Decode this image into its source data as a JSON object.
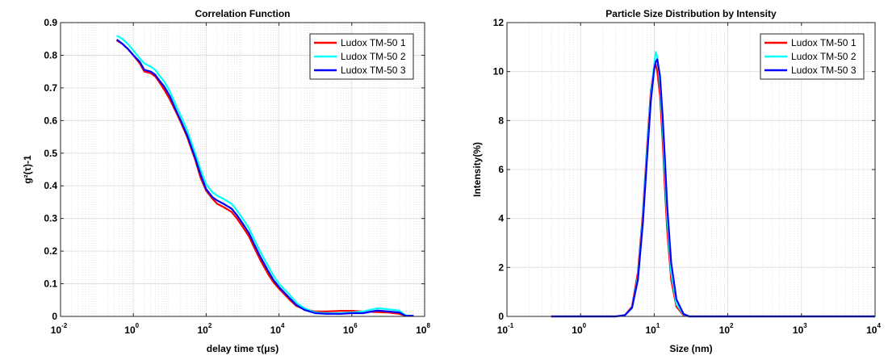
{
  "chart_data": [
    {
      "type": "line",
      "title": "Correlation Function",
      "xlabel": "delay time  τ(μs)",
      "ylabel": "g²(τ)-1",
      "xscale": "log",
      "xlim": [
        0.01,
        100000000
      ],
      "ylim": [
        0,
        0.9
      ],
      "xticks": [
        {
          "base": "10",
          "exp": "-2"
        },
        {
          "base": "10",
          "exp": "0"
        },
        {
          "base": "10",
          "exp": "2"
        },
        {
          "base": "10",
          "exp": "4"
        },
        {
          "base": "10",
          "exp": "6"
        },
        {
          "base": "10",
          "exp": "8"
        }
      ],
      "yticks": [
        "0",
        "0.1",
        "0.2",
        "0.3",
        "0.4",
        "0.5",
        "0.6",
        "0.7",
        "0.8",
        "0.9"
      ],
      "grid": true,
      "legend_position": "top-right",
      "series": [
        {
          "name": "Ludox TM-50 1",
          "color": "#ff0000",
          "x": [
            0.35,
            0.5,
            0.7,
            1,
            1.5,
            2,
            3,
            4,
            5,
            7,
            10,
            15,
            20,
            30,
            50,
            70,
            100,
            150,
            200,
            300,
            500,
            700,
            1000,
            1500,
            2000,
            3000,
            5000,
            7000,
            10000,
            20000,
            30000,
            50000,
            100000,
            200000,
            500000,
            1000000,
            2000000,
            5000000,
            10000000,
            20000000,
            30000000,
            50000000
          ],
          "y": [
            0.845,
            0.835,
            0.82,
            0.8,
            0.775,
            0.75,
            0.745,
            0.735,
            0.72,
            0.695,
            0.665,
            0.625,
            0.595,
            0.55,
            0.48,
            0.425,
            0.385,
            0.36,
            0.345,
            0.335,
            0.32,
            0.3,
            0.275,
            0.245,
            0.215,
            0.175,
            0.13,
            0.105,
            0.085,
            0.05,
            0.032,
            0.022,
            0.015,
            0.015,
            0.017,
            0.017,
            0.015,
            0.013,
            0.012,
            0.008,
            0.002,
            0.002
          ]
        },
        {
          "name": "Ludox TM-50 2",
          "color": "#00ffff",
          "x": [
            0.35,
            0.5,
            0.7,
            1,
            1.5,
            2,
            3,
            4,
            5,
            7,
            10,
            15,
            20,
            30,
            50,
            70,
            100,
            150,
            200,
            300,
            500,
            700,
            1000,
            1500,
            2000,
            3000,
            5000,
            7000,
            10000,
            20000,
            30000,
            50000,
            100000,
            200000,
            500000,
            1000000,
            2000000,
            5000000,
            10000000,
            20000000,
            30000000,
            50000000
          ],
          "y": [
            0.86,
            0.85,
            0.835,
            0.815,
            0.79,
            0.775,
            0.765,
            0.755,
            0.74,
            0.72,
            0.69,
            0.645,
            0.615,
            0.57,
            0.5,
            0.45,
            0.405,
            0.38,
            0.37,
            0.36,
            0.345,
            0.325,
            0.3,
            0.27,
            0.24,
            0.2,
            0.155,
            0.125,
            0.1,
            0.065,
            0.042,
            0.025,
            0.012,
            0.01,
            0.01,
            0.012,
            0.015,
            0.025,
            0.022,
            0.018,
            0.003,
            0.002
          ]
        },
        {
          "name": "Ludox TM-50 3",
          "color": "#0000ff",
          "x": [
            0.35,
            0.5,
            0.7,
            1,
            1.5,
            2,
            3,
            4,
            5,
            7,
            10,
            15,
            20,
            30,
            50,
            70,
            100,
            150,
            200,
            300,
            500,
            700,
            1000,
            1500,
            2000,
            3000,
            5000,
            7000,
            10000,
            20000,
            30000,
            50000,
            100000,
            200000,
            500000,
            1000000,
            2000000,
            5000000,
            10000000,
            20000000,
            30000000,
            50000000
          ],
          "y": [
            0.848,
            0.835,
            0.82,
            0.8,
            0.78,
            0.755,
            0.75,
            0.74,
            0.725,
            0.705,
            0.675,
            0.63,
            0.6,
            0.555,
            0.485,
            0.435,
            0.39,
            0.365,
            0.355,
            0.345,
            0.33,
            0.31,
            0.285,
            0.255,
            0.225,
            0.185,
            0.14,
            0.112,
            0.09,
            0.055,
            0.035,
            0.02,
            0.01,
            0.008,
            0.008,
            0.01,
            0.01,
            0.018,
            0.015,
            0.012,
            0.002,
            0.002
          ]
        }
      ]
    },
    {
      "type": "line",
      "title": "Particle Size Distribution by Intensity",
      "xlabel": "Size  (nm)",
      "ylabel": "Intensity(%)",
      "xscale": "log",
      "xlim": [
        0.1,
        10000
      ],
      "ylim": [
        0,
        12
      ],
      "xticks": [
        {
          "base": "10",
          "exp": "-1"
        },
        {
          "base": "10",
          "exp": "0"
        },
        {
          "base": "10",
          "exp": "1"
        },
        {
          "base": "10",
          "exp": "2"
        },
        {
          "base": "10",
          "exp": "3"
        },
        {
          "base": "10",
          "exp": "4"
        }
      ],
      "yticks": [
        "0",
        "2",
        "4",
        "6",
        "8",
        "10",
        "12"
      ],
      "grid": true,
      "legend_position": "top-right",
      "series": [
        {
          "name": "Ludox TM-50 1",
          "color": "#ff0000",
          "x": [
            0.4,
            1,
            2,
            3,
            4,
            5,
            6,
            7,
            8,
            9,
            10,
            10.5,
            11,
            12,
            13,
            14,
            15,
            17,
            20,
            25,
            30,
            50,
            100,
            1000,
            10000
          ],
          "y": [
            0,
            0,
            0,
            0,
            0.05,
            0.4,
            1.8,
            4.2,
            7,
            9.2,
            10.2,
            10.3,
            10.0,
            9.0,
            7.2,
            5.2,
            3.5,
            1.5,
            0.4,
            0.05,
            0,
            0,
            0,
            0,
            0
          ]
        },
        {
          "name": "Ludox TM-50 2",
          "color": "#00ffff",
          "x": [
            0.4,
            1,
            2,
            3,
            4,
            5,
            6,
            7,
            8,
            9,
            10,
            10.5,
            11,
            12,
            13,
            14,
            15,
            17,
            20,
            25,
            30,
            50,
            100,
            1000,
            10000
          ],
          "y": [
            0,
            0,
            0,
            0,
            0.05,
            0.35,
            1.6,
            4.0,
            6.8,
            9.0,
            10.3,
            10.8,
            10.6,
            9.5,
            7.8,
            5.8,
            4.0,
            1.8,
            0.5,
            0.08,
            0,
            0,
            0,
            0,
            0
          ]
        },
        {
          "name": "Ludox TM-50 3",
          "color": "#0000ff",
          "x": [
            0.4,
            1,
            2,
            3,
            4,
            5,
            6,
            7,
            8,
            9,
            10,
            10.5,
            11,
            12,
            13,
            14,
            15,
            17,
            20,
            25,
            30,
            50,
            100,
            1000,
            10000
          ],
          "y": [
            0,
            0,
            0,
            0,
            0.05,
            0.35,
            1.5,
            3.8,
            6.5,
            8.8,
            10.1,
            10.4,
            10.5,
            9.8,
            8.2,
            6.4,
            4.5,
            2.2,
            0.7,
            0.1,
            0,
            0,
            0,
            0,
            0
          ]
        }
      ]
    }
  ]
}
